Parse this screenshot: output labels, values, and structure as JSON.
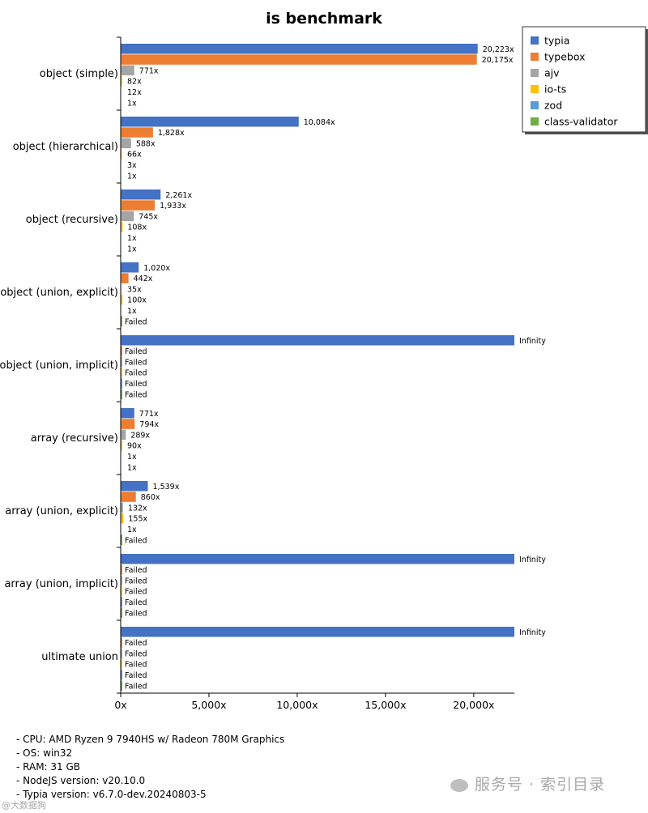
{
  "chart_data": {
    "type": "bar",
    "orientation": "horizontal",
    "title": "is benchmark",
    "xlabel": "",
    "ylabel": "",
    "xlim": [
      0,
      22300
    ],
    "xticks": [
      0,
      5000,
      10000,
      15000,
      20000
    ],
    "xtick_labels": [
      "0x",
      "5,000x",
      "10,000x",
      "15,000x",
      "20,000x"
    ],
    "legend_position": "top-right",
    "categories": [
      "object (simple)",
      "object (hierarchical)",
      "object (recursive)",
      "object (union, explicit)",
      "object (union, implicit)",
      "array (recursive)",
      "array (union, explicit)",
      "array (union, implicit)",
      "ultimate union"
    ],
    "series": [
      {
        "name": "typia",
        "color": "#4472c4",
        "values": [
          20223,
          10084,
          2261,
          1020,
          22300,
          771,
          1539,
          22300,
          22300
        ],
        "labels": [
          "20,223x",
          "10,084x",
          "2,261x",
          "1,020x",
          "Infinity",
          "771x",
          "1,539x",
          "Infinity",
          "Infinity"
        ]
      },
      {
        "name": "typebox",
        "color": "#ed7d31",
        "values": [
          20175,
          1828,
          1933,
          442,
          0,
          794,
          860,
          0,
          0
        ],
        "labels": [
          "20,175x",
          "1,828x",
          "1,933x",
          "442x",
          "Failed",
          "794x",
          "860x",
          "Failed",
          "Failed"
        ]
      },
      {
        "name": "ajv",
        "color": "#a5a5a5",
        "values": [
          771,
          588,
          745,
          35,
          0,
          289,
          132,
          0,
          0
        ],
        "labels": [
          "771x",
          "588x",
          "745x",
          "35x",
          "Failed",
          "289x",
          "132x",
          "Failed",
          "Failed"
        ]
      },
      {
        "name": "io-ts",
        "color": "#ffc000",
        "values": [
          82,
          66,
          108,
          100,
          0,
          90,
          155,
          0,
          0
        ],
        "labels": [
          "82x",
          "66x",
          "108x",
          "100x",
          "Failed",
          "90x",
          "155x",
          "Failed",
          "Failed"
        ]
      },
      {
        "name": "zod",
        "color": "#5b9bd5",
        "values": [
          12,
          3,
          1,
          1,
          0,
          1,
          1,
          0,
          0
        ],
        "labels": [
          "12x",
          "3x",
          "1x",
          "1x",
          "Failed",
          "1x",
          "1x",
          "Failed",
          "Failed"
        ]
      },
      {
        "name": "class-validator",
        "color": "#70ad47",
        "values": [
          1,
          1,
          1,
          0,
          0,
          1,
          0,
          0,
          0
        ],
        "labels": [
          "1x",
          "1x",
          "1x",
          "Failed",
          "Failed",
          "1x",
          "Failed",
          "Failed",
          "Failed"
        ]
      }
    ]
  },
  "specs": [
    "- CPU: AMD Ryzen 9 7940HS w/ Radeon 780M Graphics",
    "- OS: win32",
    "- RAM: 31 GB",
    "- NodeJS version: v20.10.0",
    "- Typia version: v6.7.0-dev.20240803-5"
  ],
  "watermark": {
    "text": "服务号 · 索引目录",
    "corner": "@大数据狗"
  }
}
